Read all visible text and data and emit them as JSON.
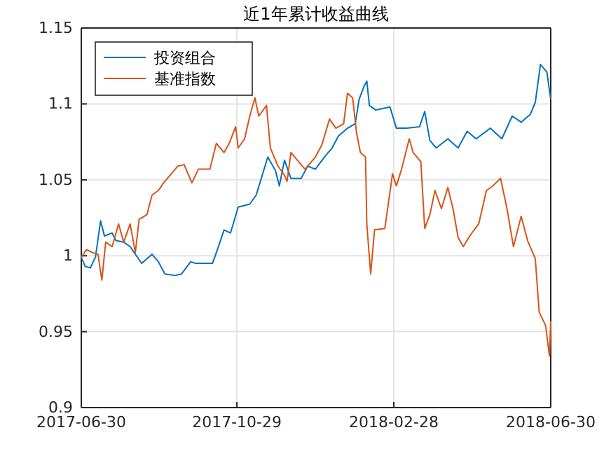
{
  "chart_data": {
    "type": "line",
    "title": "近1年累计收益曲线",
    "xlim": [
      "2017-06-30",
      "2018-06-30"
    ],
    "xticks": [
      {
        "value": "2017-06-30",
        "label": "2017-06-30"
      },
      {
        "value": "2017-10-29",
        "label": "2017-10-29"
      },
      {
        "value": "2018-02-28",
        "label": "2018-02-28"
      },
      {
        "value": "2018-06-30",
        "label": "2018-06-30"
      }
    ],
    "ylim": [
      0.9,
      1.15
    ],
    "yticks": [
      0.9,
      0.95,
      1,
      1.05,
      1.1,
      1.15
    ],
    "grid": true,
    "legend": "top left",
    "line_style": "solid",
    "marker": "none",
    "series": [
      {
        "name": "投资组合",
        "color": "#0072bd",
        "x": [
          "2017-06-30",
          "2017-07-03",
          "2017-07-07",
          "2017-07-11",
          "2017-07-15",
          "2017-07-18",
          "2017-07-24",
          "2017-07-27",
          "2017-08-02",
          "2017-08-07",
          "2017-08-11",
          "2017-08-16",
          "2017-08-24",
          "2017-08-29",
          "2017-09-03",
          "2017-09-11",
          "2017-09-16",
          "2017-09-23",
          "2017-09-27",
          "2017-10-10",
          "2017-10-13",
          "2017-10-19",
          "2017-10-24",
          "2017-10-30",
          "2017-11-08",
          "2017-11-13",
          "2017-11-22",
          "2017-11-28",
          "2017-12-01",
          "2017-12-05",
          "2017-12-10",
          "2017-12-18",
          "2017-12-23",
          "2017-12-29",
          "2018-01-05",
          "2018-01-11",
          "2018-01-16",
          "2018-01-23",
          "2018-01-29",
          "2018-02-01",
          "2018-02-05",
          "2018-02-07",
          "2018-02-09",
          "2018-02-14",
          "2018-02-25",
          "2018-03-02",
          "2018-03-10",
          "2018-03-20",
          "2018-03-24",
          "2018-03-28",
          "2018-04-02",
          "2018-04-11",
          "2018-04-19",
          "2018-04-26",
          "2018-05-03",
          "2018-05-14",
          "2018-05-23",
          "2018-05-31",
          "2018-06-07",
          "2018-06-14",
          "2018-06-18",
          "2018-06-22",
          "2018-06-27",
          "2018-06-30"
        ],
        "values": [
          0.999,
          0.993,
          0.992,
          0.999,
          1.023,
          1.013,
          1.015,
          1.01,
          1.009,
          1.006,
          1.001,
          0.995,
          1.001,
          0.996,
          0.988,
          0.987,
          0.988,
          0.996,
          0.995,
          0.995,
          1.002,
          1.017,
          1.015,
          1.032,
          1.034,
          1.04,
          1.065,
          1.056,
          1.046,
          1.063,
          1.051,
          1.051,
          1.059,
          1.057,
          1.065,
          1.071,
          1.079,
          1.084,
          1.087,
          1.103,
          1.112,
          1.115,
          1.099,
          1.096,
          1.098,
          1.084,
          1.084,
          1.085,
          1.095,
          1.076,
          1.071,
          1.077,
          1.071,
          1.082,
          1.077,
          1.084,
          1.077,
          1.092,
          1.088,
          1.093,
          1.101,
          1.126,
          1.121,
          1.103
        ]
      },
      {
        "name": "基准指数",
        "color": "#d95319",
        "x": [
          "2017-06-30",
          "2017-07-04",
          "2017-07-09",
          "2017-07-13",
          "2017-07-16",
          "2017-07-19",
          "2017-07-24",
          "2017-07-29",
          "2017-08-02",
          "2017-08-07",
          "2017-08-11",
          "2017-08-14",
          "2017-08-20",
          "2017-08-24",
          "2017-08-29",
          "2017-09-02",
          "2017-09-07",
          "2017-09-13",
          "2017-09-18",
          "2017-09-24",
          "2017-09-29",
          "2017-10-08",
          "2017-10-13",
          "2017-10-19",
          "2017-10-23",
          "2017-10-28",
          "2017-10-30",
          "2017-11-04",
          "2017-11-08",
          "2017-11-12",
          "2017-11-15",
          "2017-11-21",
          "2017-11-24",
          "2017-11-30",
          "2017-12-05",
          "2017-12-07",
          "2017-12-10",
          "2017-12-16",
          "2017-12-21",
          "2017-12-29",
          "2018-01-03",
          "2018-01-09",
          "2018-01-14",
          "2018-01-20",
          "2018-01-23",
          "2018-01-27",
          "2018-01-30",
          "2018-02-02",
          "2018-02-06",
          "2018-02-07",
          "2018-02-10",
          "2018-02-13",
          "2018-02-21",
          "2018-02-27",
          "2018-03-02",
          "2018-03-06",
          "2018-03-12",
          "2018-03-15",
          "2018-03-21",
          "2018-03-24",
          "2018-03-28",
          "2018-04-01",
          "2018-04-06",
          "2018-04-11",
          "2018-04-15",
          "2018-04-19",
          "2018-04-23",
          "2018-04-28",
          "2018-05-05",
          "2018-05-11",
          "2018-05-16",
          "2018-05-22",
          "2018-05-27",
          "2018-06-01",
          "2018-06-07",
          "2018-06-12",
          "2018-06-18",
          "2018-06-21",
          "2018-06-26",
          "2018-06-29",
          "2018-06-30"
        ],
        "values": [
          0.999,
          1.004,
          1.002,
          1.001,
          0.984,
          1.009,
          1.006,
          1.021,
          1.009,
          1.021,
          1.002,
          1.024,
          1.027,
          1.04,
          1.043,
          1.048,
          1.053,
          1.059,
          1.06,
          1.048,
          1.057,
          1.057,
          1.074,
          1.068,
          1.074,
          1.085,
          1.071,
          1.077,
          1.092,
          1.104,
          1.092,
          1.099,
          1.071,
          1.059,
          1.053,
          1.049,
          1.068,
          1.062,
          1.057,
          1.065,
          1.073,
          1.09,
          1.084,
          1.087,
          1.107,
          1.104,
          1.081,
          1.068,
          1.065,
          1.021,
          0.988,
          1.017,
          1.018,
          1.054,
          1.046,
          1.057,
          1.077,
          1.068,
          1.062,
          1.018,
          1.027,
          1.043,
          1.031,
          1.045,
          1.031,
          1.012,
          1.006,
          1.013,
          1.021,
          1.043,
          1.046,
          1.051,
          1.031,
          1.006,
          1.026,
          1.01,
          0.998,
          0.963,
          0.954,
          0.934,
          0.957
        ]
      }
    ]
  }
}
